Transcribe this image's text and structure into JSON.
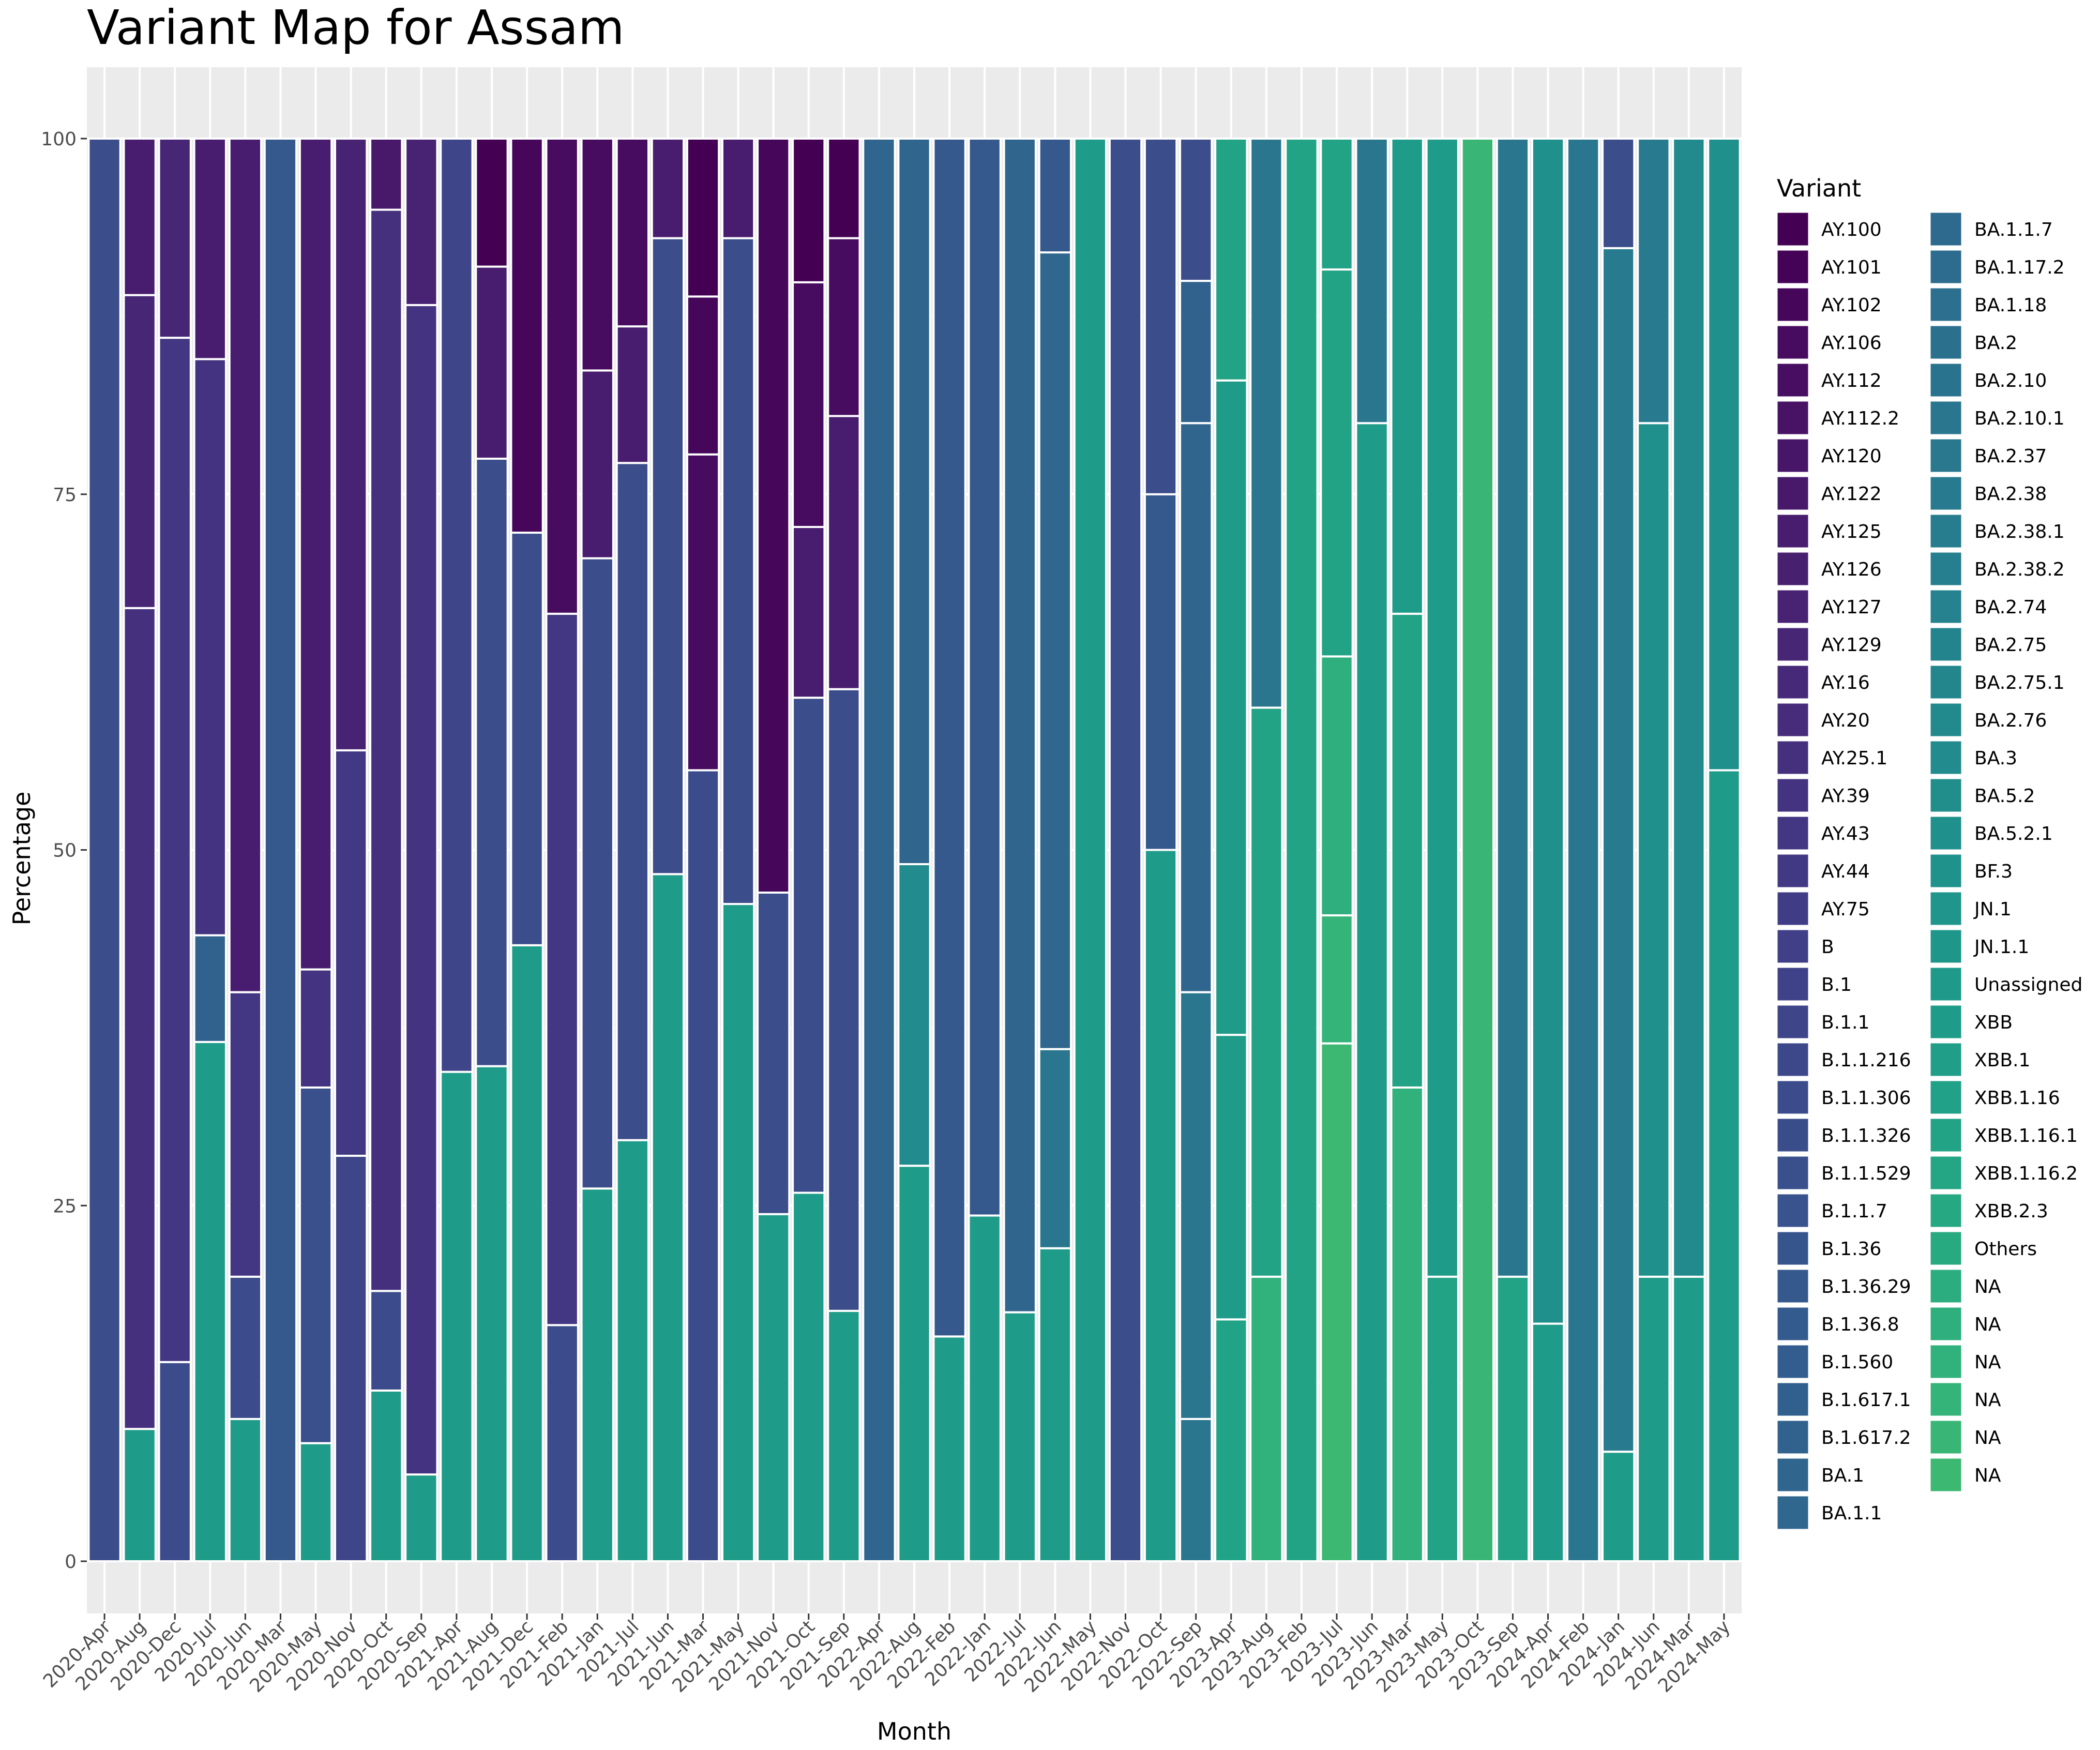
{
  "chart_data": {
    "type": "bar",
    "stacked": true,
    "title": "Variant Map for Assam",
    "xlabel": "Month",
    "ylabel": "Percentage",
    "ylim": [
      0,
      100
    ],
    "yticks": [
      0,
      25,
      50,
      75,
      100
    ],
    "grid": true,
    "legend_position": "right",
    "legend_title": "Variant",
    "categories": [
      "2020-Apr",
      "2020-Aug",
      "2020-Dec",
      "2020-Jul",
      "2020-Jun",
      "2020-Mar",
      "2020-May",
      "2020-Nov",
      "2020-Oct",
      "2020-Sep",
      "2021-Apr",
      "2021-Aug",
      "2021-Dec",
      "2021-Feb",
      "2021-Jan",
      "2021-Jul",
      "2021-Jun",
      "2021-Mar",
      "2021-May",
      "2021-Nov",
      "2021-Oct",
      "2021-Sep",
      "2022-Apr",
      "2022-Aug",
      "2022-Feb",
      "2022-Jan",
      "2022-Jul",
      "2022-Jun",
      "2022-May",
      "2022-Nov",
      "2022-Oct",
      "2022-Sep",
      "2023-Apr",
      "2023-Aug",
      "2023-Feb",
      "2023-Jul",
      "2023-Jun",
      "2023-Mar",
      "2023-May",
      "2023-Oct",
      "2023-Sep",
      "2024-Apr",
      "2024-Feb",
      "2024-Jan",
      "2024-Jun",
      "2024-Mar",
      "2024-May"
    ],
    "legend": [
      {
        "name": "AY.100",
        "color": "#440154"
      },
      {
        "name": "AY.101",
        "color": "#450357"
      },
      {
        "name": "AY.102",
        "color": "#46075b"
      },
      {
        "name": "AY.106",
        "color": "#470b5f"
      },
      {
        "name": "AY.112",
        "color": "#470e62"
      },
      {
        "name": "AY.112.2",
        "color": "#481265"
      },
      {
        "name": "AY.120",
        "color": "#481668"
      },
      {
        "name": "AY.122",
        "color": "#48196b"
      },
      {
        "name": "AY.125",
        "color": "#481c6e"
      },
      {
        "name": "AY.126",
        "color": "#482070"
      },
      {
        "name": "AY.127",
        "color": "#482374"
      },
      {
        "name": "AY.129",
        "color": "#472676"
      },
      {
        "name": "AY.16",
        "color": "#472979"
      },
      {
        "name": "AY.20",
        "color": "#462c7b"
      },
      {
        "name": "AY.25.1",
        "color": "#45307e"
      },
      {
        "name": "AY.39",
        "color": "#443380"
      },
      {
        "name": "AY.43",
        "color": "#433682"
      },
      {
        "name": "AY.44",
        "color": "#423984"
      },
      {
        "name": "AY.75",
        "color": "#413c86"
      },
      {
        "name": "B",
        "color": "#403f87"
      },
      {
        "name": "B.1",
        "color": "#3f4288"
      },
      {
        "name": "B.1.1",
        "color": "#3e4589"
      },
      {
        "name": "B.1.1.216",
        "color": "#3d488a"
      },
      {
        "name": "B.1.1.306",
        "color": "#3b4b8b"
      },
      {
        "name": "B.1.1.326",
        "color": "#3a4d8b"
      },
      {
        "name": "B.1.1.529",
        "color": "#39508c"
      },
      {
        "name": "B.1.1.7",
        "color": "#38538d"
      },
      {
        "name": "B.1.36",
        "color": "#37558d"
      },
      {
        "name": "B.1.36.29",
        "color": "#35588d"
      },
      {
        "name": "B.1.36.8",
        "color": "#345b8d"
      },
      {
        "name": "B.1.560",
        "color": "#335d8e"
      },
      {
        "name": "B.1.617.1",
        "color": "#32608e"
      },
      {
        "name": "B.1.617.2",
        "color": "#31628e"
      },
      {
        "name": "BA.1",
        "color": "#30658e"
      },
      {
        "name": "BA.1.1",
        "color": "#2f678e"
      },
      {
        "name": "BA.1.1.7",
        "color": "#2e6a8e"
      },
      {
        "name": "BA.1.17.2",
        "color": "#2d6c8e"
      },
      {
        "name": "BA.1.18",
        "color": "#2c6f8e"
      },
      {
        "name": "BA.2",
        "color": "#2b718e"
      },
      {
        "name": "BA.2.10",
        "color": "#2a738e"
      },
      {
        "name": "BA.2.10.1",
        "color": "#2a768e"
      },
      {
        "name": "BA.2.37",
        "color": "#29788e"
      },
      {
        "name": "BA.2.38",
        "color": "#287b8e"
      },
      {
        "name": "BA.2.38.1",
        "color": "#277d8e"
      },
      {
        "name": "BA.2.38.2",
        "color": "#267f8e"
      },
      {
        "name": "BA.2.74",
        "color": "#25828e"
      },
      {
        "name": "BA.2.75",
        "color": "#24848d"
      },
      {
        "name": "BA.2.75.1",
        "color": "#23868d"
      },
      {
        "name": "BA.2.76",
        "color": "#22898d"
      },
      {
        "name": "BA.3",
        "color": "#228b8d"
      },
      {
        "name": "BA.5.2",
        "color": "#218e8c"
      },
      {
        "name": "BA.5.2.1",
        "color": "#20908c"
      },
      {
        "name": "BF.3",
        "color": "#1f928c"
      },
      {
        "name": "JN.1",
        "color": "#1f958b"
      },
      {
        "name": "JN.1.1",
        "color": "#1e978a"
      },
      {
        "name": "Unassigned",
        "color": "#1f9a8a"
      },
      {
        "name": "XBB",
        "color": "#1f9c89"
      },
      {
        "name": "XBB.1",
        "color": "#209e88"
      },
      {
        "name": "XBB.1.16",
        "color": "#21a187"
      },
      {
        "name": "XBB.1.16.1",
        "color": "#22a386"
      },
      {
        "name": "XBB.1.16.2",
        "color": "#24a684"
      },
      {
        "name": "XBB.2.3",
        "color": "#26a883"
      },
      {
        "name": "Others",
        "color": "#28aa81"
      },
      {
        "name": "NA",
        "color": "#2bad7f"
      },
      {
        "name": "NA",
        "color": "#2eaf7d"
      },
      {
        "name": "NA",
        "color": "#31b17b"
      },
      {
        "name": "NA",
        "color": "#35b479"
      },
      {
        "name": "NA",
        "color": "#39b676"
      },
      {
        "name": "NA",
        "color": "#3db873"
      }
    ],
    "bars": [
      {
        "month": "2020-Apr",
        "segments": [
          {
            "v": 100,
            "c": "#3b4d8b"
          }
        ]
      },
      {
        "month": "2020-Aug",
        "segments": [
          {
            "v": 9.3,
            "c": "#1f9c89"
          },
          {
            "v": 57.7,
            "c": "#45307e"
          },
          {
            "v": 22,
            "c": "#472676"
          },
          {
            "v": 11,
            "c": "#481c6e"
          }
        ]
      },
      {
        "month": "2020-Dec",
        "segments": [
          {
            "v": 14,
            "c": "#3b4b8b"
          },
          {
            "v": 72,
            "c": "#433682"
          },
          {
            "v": 14,
            "c": "#472676"
          }
        ]
      },
      {
        "month": "2020-Jul",
        "segments": [
          {
            "v": 36.5,
            "c": "#1f9c89"
          },
          {
            "v": 7.5,
            "c": "#31628e"
          },
          {
            "v": 40.5,
            "c": "#443380"
          },
          {
            "v": 15.5,
            "c": "#481c6e"
          }
        ]
      },
      {
        "month": "2020-Jun",
        "segments": [
          {
            "v": 10,
            "c": "#1f9c89"
          },
          {
            "v": 10,
            "c": "#3b4b8b"
          },
          {
            "v": 20,
            "c": "#433682"
          },
          {
            "v": 60,
            "c": "#481c6e"
          }
        ]
      },
      {
        "month": "2020-Mar",
        "segments": [
          {
            "v": 100,
            "c": "#35588d"
          }
        ]
      },
      {
        "month": "2020-May",
        "segments": [
          {
            "v": 8.3,
            "c": "#1f9c89"
          },
          {
            "v": 25,
            "c": "#39508c"
          },
          {
            "v": 8.3,
            "c": "#443380"
          },
          {
            "v": 58.4,
            "c": "#481c6e"
          }
        ]
      },
      {
        "month": "2020-Nov",
        "segments": [
          {
            "v": 28.5,
            "c": "#3e4589"
          },
          {
            "v": 28.5,
            "c": "#423984"
          },
          {
            "v": 43,
            "c": "#482374"
          }
        ]
      },
      {
        "month": "2020-Oct",
        "segments": [
          {
            "v": 12,
            "c": "#1f9c89"
          },
          {
            "v": 7,
            "c": "#3b4b8b"
          },
          {
            "v": 76,
            "c": "#45307e"
          },
          {
            "v": 5,
            "c": "#48196b"
          }
        ]
      },
      {
        "month": "2020-Sep",
        "segments": [
          {
            "v": 6.1,
            "c": "#1f9c89"
          },
          {
            "v": 82.2,
            "c": "#443380"
          },
          {
            "v": 11.7,
            "c": "#482374"
          }
        ]
      },
      {
        "month": "2021-Apr",
        "segments": [
          {
            "v": 34.4,
            "c": "#1f9c89"
          },
          {
            "v": 65.6,
            "c": "#3e4589"
          }
        ]
      },
      {
        "month": "2021-Aug",
        "segments": [
          {
            "v": 34.8,
            "c": "#1f9c89"
          },
          {
            "v": 42.7,
            "c": "#3b4d8b"
          },
          {
            "v": 13.5,
            "c": "#481c6e"
          },
          {
            "v": 9,
            "c": "#440154"
          }
        ]
      },
      {
        "month": "2021-Dec",
        "segments": [
          {
            "v": 43.3,
            "c": "#1f9c89"
          },
          {
            "v": 29,
            "c": "#3b4d8b"
          },
          {
            "v": 27.7,
            "c": "#46075b"
          }
        ]
      },
      {
        "month": "2021-Feb",
        "segments": [
          {
            "v": 16.6,
            "c": "#3b4b8b"
          },
          {
            "v": 50,
            "c": "#433682"
          },
          {
            "v": 33.4,
            "c": "#470b5f"
          }
        ]
      },
      {
        "month": "2021-Jan",
        "segments": [
          {
            "v": 26.2,
            "c": "#1f9c89"
          },
          {
            "v": 44.3,
            "c": "#3b4d8b"
          },
          {
            "v": 13.2,
            "c": "#481c6e"
          },
          {
            "v": 16.3,
            "c": "#470b5f"
          }
        ]
      },
      {
        "month": "2021-Jul",
        "segments": [
          {
            "v": 29.6,
            "c": "#1f9c89"
          },
          {
            "v": 47.6,
            "c": "#3b4d8b"
          },
          {
            "v": 9.6,
            "c": "#481c6e"
          },
          {
            "v": 13.2,
            "c": "#470b5f"
          }
        ]
      },
      {
        "month": "2021-Jun",
        "segments": [
          {
            "v": 48.3,
            "c": "#1f9c89"
          },
          {
            "v": 44.7,
            "c": "#3b4d8b"
          },
          {
            "v": 7,
            "c": "#481c6e"
          }
        ]
      },
      {
        "month": "2021-Mar",
        "segments": [
          {
            "v": 55.6,
            "c": "#3b4b8b"
          },
          {
            "v": 22.2,
            "c": "#470b5f"
          },
          {
            "v": 11.1,
            "c": "#46075b"
          },
          {
            "v": 11.1,
            "c": "#440154"
          }
        ]
      },
      {
        "month": "2021-May",
        "segments": [
          {
            "v": 46.2,
            "c": "#1f9c89"
          },
          {
            "v": 46.8,
            "c": "#3b4d8b"
          },
          {
            "v": 7,
            "c": "#481c6e"
          }
        ]
      },
      {
        "month": "2021-Nov",
        "segments": [
          {
            "v": 24.4,
            "c": "#1f9c89"
          },
          {
            "v": 22.6,
            "c": "#3b4d8b"
          },
          {
            "v": 53,
            "c": "#46075b"
          }
        ]
      },
      {
        "month": "2021-Oct",
        "segments": [
          {
            "v": 25.9,
            "c": "#1f9c89"
          },
          {
            "v": 34.8,
            "c": "#3b4d8b"
          },
          {
            "v": 12,
            "c": "#481c6e"
          },
          {
            "v": 17.2,
            "c": "#470b5f"
          },
          {
            "v": 10.1,
            "c": "#440154"
          }
        ]
      },
      {
        "month": "2021-Sep",
        "segments": [
          {
            "v": 17.6,
            "c": "#1f9c89"
          },
          {
            "v": 43.7,
            "c": "#3b4d8b"
          },
          {
            "v": 19.2,
            "c": "#481c6e"
          },
          {
            "v": 12.5,
            "c": "#470b5f"
          },
          {
            "v": 7,
            "c": "#440154"
          }
        ]
      },
      {
        "month": "2022-Apr",
        "segments": [
          {
            "v": 100,
            "c": "#30658e"
          }
        ]
      },
      {
        "month": "2022-Aug",
        "segments": [
          {
            "v": 27.8,
            "c": "#1f9c89"
          },
          {
            "v": 21.2,
            "c": "#228b8d"
          },
          {
            "v": 51,
            "c": "#30658e"
          }
        ]
      },
      {
        "month": "2022-Feb",
        "segments": [
          {
            "v": 15.8,
            "c": "#1f9c89"
          },
          {
            "v": 84.2,
            "c": "#35588d"
          }
        ]
      },
      {
        "month": "2022-Jan",
        "segments": [
          {
            "v": 24.3,
            "c": "#1f9c89"
          },
          {
            "v": 75.7,
            "c": "#35588d"
          }
        ]
      },
      {
        "month": "2022-Jul",
        "segments": [
          {
            "v": 17.5,
            "c": "#1f9c89"
          },
          {
            "v": 82.5,
            "c": "#30658e"
          }
        ]
      },
      {
        "month": "2022-Jun",
        "segments": [
          {
            "v": 22,
            "c": "#1f9c89"
          },
          {
            "v": 14,
            "c": "#2a768e"
          },
          {
            "v": 56,
            "c": "#2f678e"
          },
          {
            "v": 8,
            "c": "#35588d"
          }
        ]
      },
      {
        "month": "2022-May",
        "segments": [
          {
            "v": 100,
            "c": "#1f9c89"
          }
        ]
      },
      {
        "month": "2022-Nov",
        "segments": [
          {
            "v": 100,
            "c": "#3b4d8b"
          }
        ]
      },
      {
        "month": "2022-Oct",
        "segments": [
          {
            "v": 50,
            "c": "#1f9c89"
          },
          {
            "v": 25,
            "c": "#35588d"
          },
          {
            "v": 25,
            "c": "#3b4d8b"
          }
        ]
      },
      {
        "month": "2022-Sep",
        "segments": [
          {
            "v": 10,
            "c": "#2a768e"
          },
          {
            "v": 30,
            "c": "#2a768e"
          },
          {
            "v": 40,
            "c": "#30658e"
          },
          {
            "v": 10,
            "c": "#31628e"
          },
          {
            "v": 10,
            "c": "#3b4d8b"
          }
        ]
      },
      {
        "month": "2023-Apr",
        "segments": [
          {
            "v": 17,
            "c": "#20a386"
          },
          {
            "v": 20,
            "c": "#1f9c89"
          },
          {
            "v": 46,
            "c": "#1f9c89"
          },
          {
            "v": 17,
            "c": "#22a386"
          }
        ]
      },
      {
        "month": "2023-Aug",
        "segments": [
          {
            "v": 20,
            "c": "#31b17b"
          },
          {
            "v": 40,
            "c": "#22a386"
          },
          {
            "v": 40,
            "c": "#2a768e"
          }
        ]
      },
      {
        "month": "2023-Feb",
        "segments": [
          {
            "v": 100,
            "c": "#22a386"
          }
        ]
      },
      {
        "month": "2023-Jul",
        "segments": [
          {
            "v": 36.4,
            "c": "#3db873"
          },
          {
            "v": 9,
            "c": "#35b479"
          },
          {
            "v": 18.2,
            "c": "#2eaf7d"
          },
          {
            "v": 27.2,
            "c": "#22a386"
          },
          {
            "v": 9.2,
            "c": "#22a386"
          }
        ]
      },
      {
        "month": "2023-Jun",
        "segments": [
          {
            "v": 80,
            "c": "#1f9c89"
          },
          {
            "v": 20,
            "c": "#2a768e"
          }
        ]
      },
      {
        "month": "2023-Mar",
        "segments": [
          {
            "v": 33.3,
            "c": "#31b17b"
          },
          {
            "v": 33.3,
            "c": "#22a386"
          },
          {
            "v": 33.4,
            "c": "#1f9c89"
          }
        ]
      },
      {
        "month": "2023-May",
        "segments": [
          {
            "v": 20,
            "c": "#22a386"
          },
          {
            "v": 80,
            "c": "#1f9c89"
          }
        ]
      },
      {
        "month": "2023-Oct",
        "segments": [
          {
            "v": 100,
            "c": "#39b676"
          }
        ]
      },
      {
        "month": "2023-Sep",
        "segments": [
          {
            "v": 20,
            "c": "#22a386"
          },
          {
            "v": 80,
            "c": "#2a768e"
          }
        ]
      },
      {
        "month": "2024-Apr",
        "segments": [
          {
            "v": 16.7,
            "c": "#1f9c89"
          },
          {
            "v": 83.3,
            "c": "#20908c"
          }
        ]
      },
      {
        "month": "2024-Feb",
        "segments": [
          {
            "v": 100,
            "c": "#2a768e"
          }
        ]
      },
      {
        "month": "2024-Jan",
        "segments": [
          {
            "v": 7.7,
            "c": "#1f9c89"
          },
          {
            "v": 84.6,
            "c": "#287b8e"
          },
          {
            "v": 7.7,
            "c": "#3b4d8b"
          }
        ]
      },
      {
        "month": "2024-Jun",
        "segments": [
          {
            "v": 20,
            "c": "#1f9c89"
          },
          {
            "v": 60,
            "c": "#20908c"
          },
          {
            "v": 20,
            "c": "#287b8e"
          }
        ]
      },
      {
        "month": "2024-Mar",
        "segments": [
          {
            "v": 20,
            "c": "#1f9c89"
          },
          {
            "v": 80,
            "c": "#22898d"
          }
        ]
      },
      {
        "month": "2024-May",
        "segments": [
          {
            "v": 55.6,
            "c": "#1f9c89"
          },
          {
            "v": 44.4,
            "c": "#20908c"
          }
        ]
      }
    ]
  }
}
